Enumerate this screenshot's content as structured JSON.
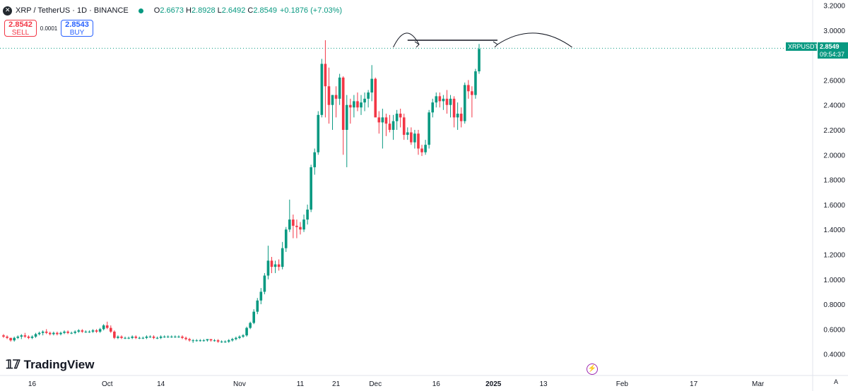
{
  "header": {
    "title": "XRP / TetherUS · 1D · BINANCE",
    "open_label": "O",
    "open": "2.6673",
    "high_label": "H",
    "high": "2.8928",
    "low_label": "L",
    "low": "2.6492",
    "close_label": "C",
    "close": "2.8549",
    "change": "+0.1876 (+7.03%)"
  },
  "trade": {
    "sell_price": "2.8542",
    "sell_label": "SELL",
    "spread": "0.0001",
    "buy_price": "2.8543",
    "buy_label": "BUY"
  },
  "price_tag": {
    "symbol": "XRPUSDT",
    "price": "2.8549",
    "countdown": "09:54:37"
  },
  "branding": {
    "name": "TradingView"
  },
  "corner_label": "A",
  "colors": {
    "up": "#089981",
    "down": "#f23645",
    "grid_text": "#131722"
  },
  "chart_data": {
    "type": "candlestick",
    "y_ticks": [
      "3.2000",
      "3.0000",
      "2.6000",
      "2.4000",
      "2.2000",
      "2.0000",
      "1.8000",
      "1.6000",
      "1.4000",
      "1.2000",
      "1.0000",
      "0.8000",
      "0.6000",
      "0.4000"
    ],
    "y_tick_values": [
      3.2,
      3.0,
      2.6,
      2.4,
      2.2,
      2.0,
      1.8,
      1.6,
      1.4,
      1.2,
      1.0,
      0.8,
      0.6,
      0.4
    ],
    "x_ticks": [
      "16",
      "Oct",
      "14",
      "Nov",
      "11",
      "21",
      "Dec",
      "16",
      "2025",
      "13",
      "Feb",
      "17",
      "Mar"
    ],
    "x_tick_positions": [
      8,
      29,
      44,
      66,
      83,
      93,
      104,
      121,
      137,
      151,
      173,
      193,
      211
    ],
    "ylim": [
      0.33,
      3.22
    ],
    "last_price": 2.8549,
    "resistance_level": 2.92,
    "candles_ohlc": [
      [
        0.55,
        0.56,
        0.53,
        0.54
      ],
      [
        0.54,
        0.55,
        0.52,
        0.53
      ],
      [
        0.53,
        0.53,
        0.5,
        0.51
      ],
      [
        0.51,
        0.54,
        0.5,
        0.53
      ],
      [
        0.53,
        0.55,
        0.52,
        0.54
      ],
      [
        0.54,
        0.56,
        0.52,
        0.55
      ],
      [
        0.55,
        0.57,
        0.53,
        0.54
      ],
      [
        0.54,
        0.55,
        0.52,
        0.53
      ],
      [
        0.53,
        0.55,
        0.52,
        0.54
      ],
      [
        0.54,
        0.57,
        0.53,
        0.56
      ],
      [
        0.56,
        0.58,
        0.55,
        0.57
      ],
      [
        0.57,
        0.59,
        0.55,
        0.58
      ],
      [
        0.58,
        0.6,
        0.56,
        0.57
      ],
      [
        0.57,
        0.58,
        0.55,
        0.56
      ],
      [
        0.56,
        0.58,
        0.55,
        0.57
      ],
      [
        0.57,
        0.58,
        0.55,
        0.56
      ],
      [
        0.56,
        0.58,
        0.55,
        0.57
      ],
      [
        0.57,
        0.59,
        0.56,
        0.58
      ],
      [
        0.58,
        0.59,
        0.56,
        0.57
      ],
      [
        0.57,
        0.58,
        0.56,
        0.57
      ],
      [
        0.57,
        0.59,
        0.56,
        0.58
      ],
      [
        0.58,
        0.6,
        0.57,
        0.59
      ],
      [
        0.59,
        0.6,
        0.57,
        0.58
      ],
      [
        0.58,
        0.59,
        0.57,
        0.58
      ],
      [
        0.58,
        0.59,
        0.57,
        0.58
      ],
      [
        0.58,
        0.6,
        0.57,
        0.59
      ],
      [
        0.59,
        0.6,
        0.57,
        0.58
      ],
      [
        0.58,
        0.61,
        0.57,
        0.6
      ],
      [
        0.6,
        0.64,
        0.59,
        0.63
      ],
      [
        0.63,
        0.66,
        0.6,
        0.61
      ],
      [
        0.61,
        0.63,
        0.57,
        0.58
      ],
      [
        0.58,
        0.59,
        0.52,
        0.53
      ],
      [
        0.53,
        0.55,
        0.52,
        0.54
      ],
      [
        0.54,
        0.55,
        0.52,
        0.53
      ],
      [
        0.53,
        0.54,
        0.52,
        0.53
      ],
      [
        0.53,
        0.54,
        0.52,
        0.53
      ],
      [
        0.53,
        0.55,
        0.52,
        0.54
      ],
      [
        0.54,
        0.55,
        0.52,
        0.53
      ],
      [
        0.53,
        0.54,
        0.52,
        0.53
      ],
      [
        0.53,
        0.54,
        0.52,
        0.53
      ],
      [
        0.53,
        0.55,
        0.52,
        0.54
      ],
      [
        0.54,
        0.55,
        0.53,
        0.54
      ],
      [
        0.54,
        0.55,
        0.52,
        0.53
      ],
      [
        0.53,
        0.54,
        0.52,
        0.53
      ],
      [
        0.53,
        0.55,
        0.52,
        0.54
      ],
      [
        0.54,
        0.55,
        0.53,
        0.54
      ],
      [
        0.54,
        0.55,
        0.53,
        0.54
      ],
      [
        0.54,
        0.55,
        0.53,
        0.54
      ],
      [
        0.54,
        0.55,
        0.53,
        0.54
      ],
      [
        0.54,
        0.55,
        0.53,
        0.54
      ],
      [
        0.54,
        0.55,
        0.52,
        0.53
      ],
      [
        0.53,
        0.54,
        0.51,
        0.52
      ],
      [
        0.52,
        0.53,
        0.5,
        0.51
      ],
      [
        0.51,
        0.52,
        0.49,
        0.51
      ],
      [
        0.51,
        0.52,
        0.5,
        0.51
      ],
      [
        0.51,
        0.52,
        0.5,
        0.51
      ],
      [
        0.51,
        0.52,
        0.5,
        0.51
      ],
      [
        0.51,
        0.52,
        0.5,
        0.52
      ],
      [
        0.52,
        0.52,
        0.5,
        0.51
      ],
      [
        0.51,
        0.52,
        0.5,
        0.51
      ],
      [
        0.51,
        0.52,
        0.49,
        0.5
      ],
      [
        0.5,
        0.51,
        0.49,
        0.5
      ],
      [
        0.5,
        0.51,
        0.49,
        0.5
      ],
      [
        0.5,
        0.52,
        0.49,
        0.51
      ],
      [
        0.51,
        0.53,
        0.5,
        0.52
      ],
      [
        0.52,
        0.54,
        0.51,
        0.53
      ],
      [
        0.53,
        0.55,
        0.52,
        0.54
      ],
      [
        0.54,
        0.56,
        0.53,
        0.55
      ],
      [
        0.55,
        0.62,
        0.54,
        0.61
      ],
      [
        0.61,
        0.66,
        0.6,
        0.65
      ],
      [
        0.65,
        0.76,
        0.64,
        0.74
      ],
      [
        0.74,
        0.85,
        0.72,
        0.83
      ],
      [
        0.83,
        0.93,
        0.8,
        0.9
      ],
      [
        0.9,
        1.05,
        0.88,
        1.03
      ],
      [
        1.03,
        1.27,
        1.0,
        1.15
      ],
      [
        1.15,
        1.18,
        1.05,
        1.1
      ],
      [
        1.1,
        1.15,
        1.05,
        1.12
      ],
      [
        1.12,
        1.16,
        1.07,
        1.1
      ],
      [
        1.1,
        1.3,
        1.08,
        1.25
      ],
      [
        1.25,
        1.42,
        1.22,
        1.4
      ],
      [
        1.4,
        1.64,
        1.38,
        1.48
      ],
      [
        1.48,
        1.52,
        1.33,
        1.43
      ],
      [
        1.43,
        1.48,
        1.33,
        1.42
      ],
      [
        1.42,
        1.46,
        1.36,
        1.4
      ],
      [
        1.4,
        1.52,
        1.38,
        1.48
      ],
      [
        1.48,
        1.6,
        1.44,
        1.56
      ],
      [
        1.56,
        1.92,
        1.54,
        1.9
      ],
      [
        1.9,
        2.05,
        1.84,
        2.02
      ],
      [
        2.02,
        2.35,
        2.0,
        2.32
      ],
      [
        2.32,
        2.77,
        2.3,
        2.73
      ],
      [
        2.73,
        2.92,
        2.3,
        2.55
      ],
      [
        2.55,
        2.7,
        2.25,
        2.4
      ],
      [
        2.4,
        2.48,
        2.2,
        2.48
      ],
      [
        2.48,
        2.55,
        2.3,
        2.45
      ],
      [
        2.45,
        2.65,
        2.4,
        2.62
      ],
      [
        2.62,
        2.63,
        2.0,
        2.2
      ],
      [
        2.2,
        2.48,
        1.9,
        2.4
      ],
      [
        2.4,
        2.45,
        2.25,
        2.38
      ],
      [
        2.38,
        2.48,
        2.3,
        2.43
      ],
      [
        2.43,
        2.5,
        2.35,
        2.38
      ],
      [
        2.38,
        2.48,
        2.32,
        2.42
      ],
      [
        2.42,
        2.5,
        2.35,
        2.45
      ],
      [
        2.45,
        2.52,
        2.38,
        2.5
      ],
      [
        2.5,
        2.72,
        2.43,
        2.61
      ],
      [
        2.61,
        2.62,
        2.36,
        2.3
      ],
      [
        2.3,
        2.35,
        2.17,
        2.26
      ],
      [
        2.26,
        2.37,
        2.05,
        2.3
      ],
      [
        2.3,
        2.33,
        2.15,
        2.25
      ],
      [
        2.25,
        2.32,
        2.18,
        2.2
      ],
      [
        2.2,
        2.32,
        2.12,
        2.27
      ],
      [
        2.27,
        2.36,
        2.2,
        2.33
      ],
      [
        2.33,
        2.37,
        2.22,
        2.3
      ],
      [
        2.3,
        2.33,
        2.12,
        2.16
      ],
      [
        2.16,
        2.22,
        2.12,
        2.18
      ],
      [
        2.18,
        2.22,
        2.08,
        2.1
      ],
      [
        2.1,
        2.2,
        2.05,
        2.17
      ],
      [
        2.17,
        2.2,
        2.0,
        2.05
      ],
      [
        2.05,
        2.08,
        1.99,
        2.02
      ],
      [
        2.02,
        2.12,
        2.0,
        2.08
      ],
      [
        2.08,
        2.36,
        2.05,
        2.34
      ],
      [
        2.34,
        2.45,
        2.3,
        2.42
      ],
      [
        2.42,
        2.5,
        2.38,
        2.47
      ],
      [
        2.47,
        2.5,
        2.38,
        2.43
      ],
      [
        2.43,
        2.48,
        2.36,
        2.45
      ],
      [
        2.45,
        2.52,
        2.33,
        2.4
      ],
      [
        2.4,
        2.48,
        2.3,
        2.45
      ],
      [
        2.45,
        2.47,
        2.22,
        2.3
      ],
      [
        2.3,
        2.42,
        2.2,
        2.33
      ],
      [
        2.33,
        2.38,
        2.22,
        2.27
      ],
      [
        2.27,
        2.58,
        2.25,
        2.56
      ],
      [
        2.56,
        2.6,
        2.45,
        2.51
      ],
      [
        2.51,
        2.55,
        2.3,
        2.48
      ],
      [
        2.48,
        2.69,
        2.45,
        2.67
      ],
      [
        2.67,
        2.89,
        2.65,
        2.85
      ]
    ]
  }
}
